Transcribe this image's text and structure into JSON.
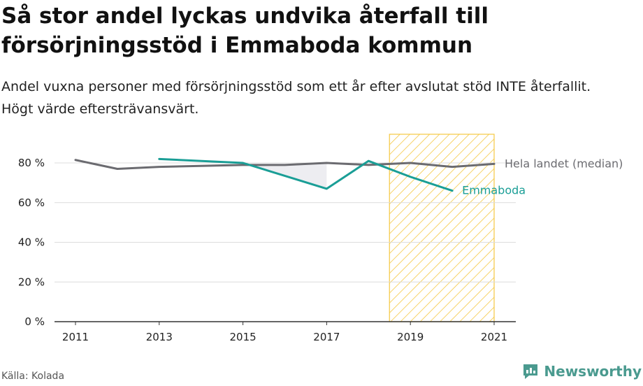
{
  "title": "Så stor andel lyckas undvika återfall till försörjningsstöd i Emmaboda kommun",
  "subtitle": "Andel vuxna personer med försörjningsstöd som ett år efter avslutat stöd INTE återfallit. Högt värde eftersträvansvärt.",
  "source": "Källa: Kolada",
  "brand": {
    "name": "Newsworthy",
    "icon": "newsworthy-logo-icon",
    "color": "#4a9a8f"
  },
  "chart_data": {
    "type": "line",
    "x": [
      2011,
      2012,
      2013,
      2014,
      2015,
      2016,
      2017,
      2018,
      2019,
      2020,
      2021
    ],
    "xticks": [
      2011,
      2013,
      2015,
      2017,
      2019,
      2021
    ],
    "xtick_labels": [
      "2011",
      "2013",
      "2015",
      "2017",
      "2019",
      "2021"
    ],
    "ylim": [
      0,
      90
    ],
    "yticks": [
      0,
      20,
      40,
      60,
      80
    ],
    "ytick_labels": [
      "0 %",
      "20 %",
      "40 %",
      "60 %",
      "80 %"
    ],
    "grid": true,
    "highlight_range": [
      2018.5,
      2021
    ],
    "highlight_color": "#f5c842",
    "series": [
      {
        "name": "Hela landet (median)",
        "color": "#6b6b70",
        "values": [
          81.5,
          77,
          78,
          78.5,
          79,
          79,
          80,
          79,
          80,
          78,
          79.5
        ]
      },
      {
        "name": "Emmaboda",
        "color": "#1a9e96",
        "values": [
          null,
          null,
          82,
          null,
          80,
          null,
          67,
          81,
          73,
          66,
          null
        ]
      }
    ]
  }
}
